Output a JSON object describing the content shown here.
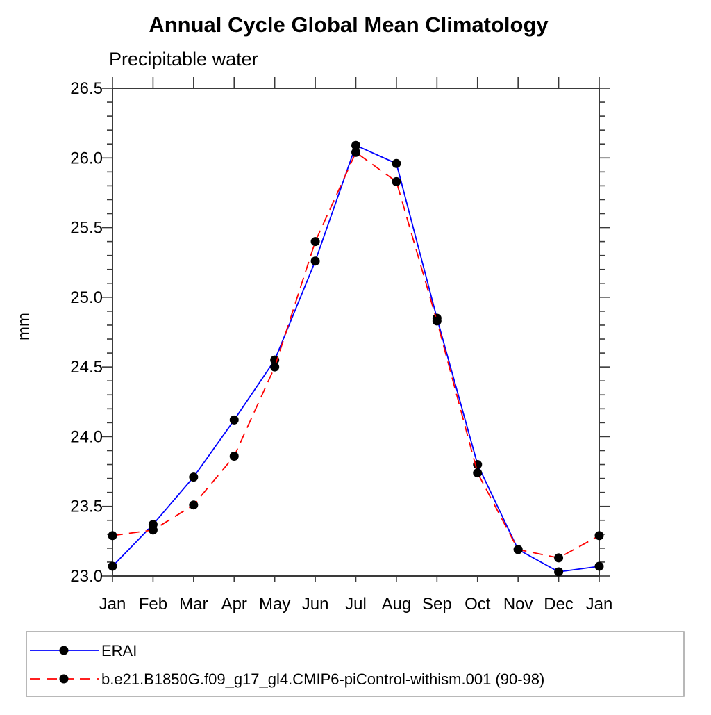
{
  "chart_data": {
    "type": "line",
    "title": "Annual Cycle Global Mean Climatology",
    "subtitle": "Precipitable water",
    "ylabel": "mm",
    "xlabel": "",
    "x_categories": [
      "Jan",
      "Feb",
      "Mar",
      "Apr",
      "May",
      "Jun",
      "Jul",
      "Aug",
      "Sep",
      "Oct",
      "Nov",
      "Dec",
      "Jan"
    ],
    "ylim": [
      23.0,
      26.5
    ],
    "y_major_ticks": [
      "23.0",
      "23.5",
      "24.0",
      "24.5",
      "25.0",
      "25.5",
      "26.0",
      "26.5"
    ],
    "y_minor_step": 0.1,
    "grid": false,
    "legend_position": "bottom-left-box",
    "axis_color": "#3a3a3a",
    "marker_color": "#000000",
    "legend_border_color": "#a0a0a0",
    "series": [
      {
        "name": "ERAI",
        "color": "#0000ff",
        "style": "solid",
        "marker": "circle",
        "values": [
          23.07,
          23.37,
          23.71,
          24.12,
          24.55,
          25.26,
          26.09,
          25.96,
          24.85,
          23.8,
          23.19,
          23.03,
          23.07
        ]
      },
      {
        "name": "b.e21.B1850G.f09_g17_gl4.CMIP6-piControl-withism.001 (90-98)",
        "color": "#ff0000",
        "style": "dashed",
        "marker": "circle",
        "values": [
          23.29,
          23.33,
          23.51,
          23.86,
          24.5,
          25.4,
          26.04,
          25.83,
          24.83,
          23.74,
          23.19,
          23.13,
          23.29
        ]
      }
    ]
  }
}
